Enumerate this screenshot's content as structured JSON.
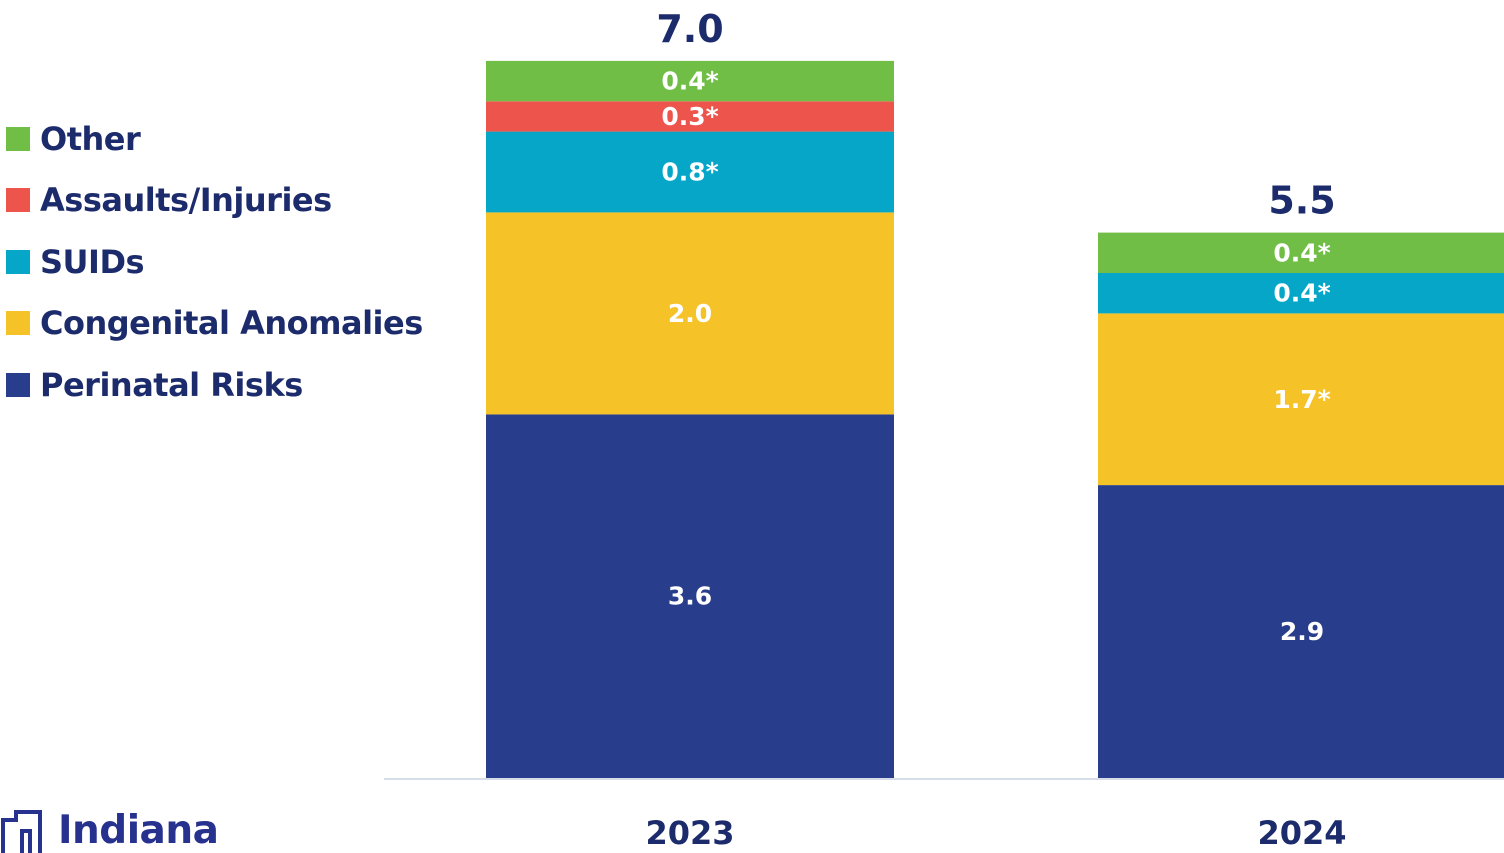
{
  "chart_data": {
    "type": "bar",
    "stacked": true,
    "categories": [
      "2023",
      "2024"
    ],
    "totals": [
      "7.0",
      "5.5"
    ],
    "series": [
      {
        "name": "Perinatal Risks",
        "color": "#283e8c",
        "values": [
          3.6,
          2.9
        ],
        "labels": [
          "3.6",
          "2.9"
        ]
      },
      {
        "name": "Congenital Anomalies",
        "color": "#f5c227",
        "values": [
          2.0,
          1.7
        ],
        "labels": [
          "2.0",
          "1.7*"
        ]
      },
      {
        "name": "SUIDs",
        "color": "#06a6c9",
        "values": [
          0.8,
          0.4
        ],
        "labels": [
          "0.8*",
          "0.4*"
        ]
      },
      {
        "name": "Assaults/Injuries",
        "color": "#ec544c",
        "values": [
          0.3,
          0
        ],
        "labels": [
          "0.3*",
          ""
        ]
      },
      {
        "name": "Other",
        "color": "#71be47",
        "values": [
          0.4,
          0.4
        ],
        "labels": [
          "0.4*",
          "0.4*"
        ]
      }
    ],
    "legend_order": [
      "Other",
      "Assaults/Injuries",
      "SUIDs",
      "Congenital Anomalies",
      "Perinatal Risks"
    ],
    "legend_position": "left",
    "ylim": [
      0,
      7.2
    ],
    "grid": false
  },
  "colors": {
    "label_text": "#1c2b6b",
    "segment_text": "#ffffff",
    "axis_line": "#d6dde8",
    "logo": "#27318e"
  },
  "logo": {
    "text": "Indiana"
  }
}
